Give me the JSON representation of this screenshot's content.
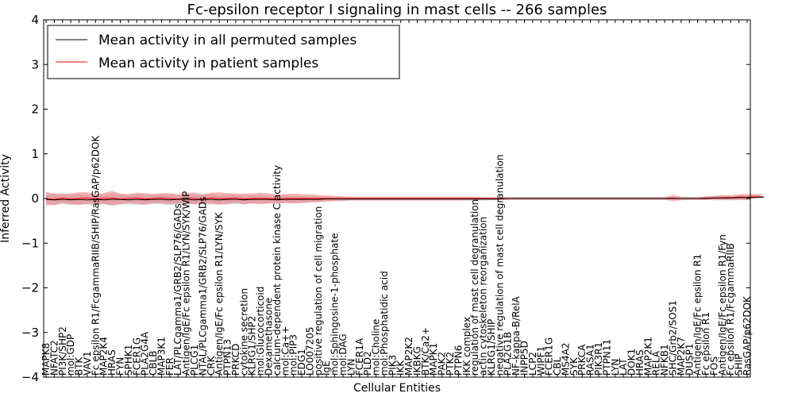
{
  "chart_data": {
    "type": "line",
    "title": "Fc-epsilon receptor I signaling in mast cells -- 266 samples",
    "xlabel": "Cellular Entities",
    "ylabel": "Inferred Activity",
    "ylim": [
      -4,
      4
    ],
    "yticks": [
      "−4",
      "−3",
      "−2",
      "−1",
      "0",
      "1",
      "2",
      "3",
      "4"
    ],
    "legend": {
      "placement": "top-left",
      "entries": [
        {
          "label": "Mean activity in all permuted samples",
          "color": "#000000"
        },
        {
          "label": "Mean activity in patient samples",
          "color": "#ff0000"
        }
      ]
    },
    "colors": {
      "patient": "#ff0000",
      "patient_band": "#f08080",
      "permuted_band": "#b8b8c8"
    },
    "labels": [
      "MAPK8",
      "NFATC2",
      "PI3K/SHP2",
      "mol:GDP",
      "BTK",
      "VAV1",
      "Fc epsilon R1/FcgammaRIIB/SHIP/RasGAP/p62DOK",
      "MAP2K4",
      "HRAS",
      "FYN",
      "SPHK1",
      "FCER1G",
      "PLA2G4A",
      "CBLB",
      "MAP3K1",
      "FER",
      "LAT/PLCgamma1/GRB2/SLP76/GADs",
      "Antigen/IgE/Fc epsilon R1/LYN/SYK/WIP",
      "PLCG1",
      "NTAL/PLCgamma1/GRB2/SLP76/GADs",
      "CRK",
      "Antigen/IgE/Fc epsilon R1/LYN/SYK",
      "PTPN13",
      "PRKCD",
      "cytokine secretion",
      "KLRG1/SHP2",
      "mol:Glucocorticoid",
      "Dexamethasone",
      "calcium-dependent protein kinase C activity",
      "mol:Ca++",
      "mol:PIP3",
      "EDG1",
      "LO007205",
      "positive regulation of cell migration",
      "IgE",
      "mol:Sphingosine-1-phosphate",
      "mol:DAG",
      "LYN",
      "FCER1A",
      "PLD2",
      "mol:Choline",
      "mol:Phosphatidic acid",
      "PIK3",
      "IKK",
      "MAP2K2",
      "IKBKG",
      "BTK/Ca2+",
      "MAPK1",
      "PAK2",
      "PTK2",
      "PTPN6",
      "IKK complex",
      "regulation of mast cell degranulation",
      "actin cytoskeleton reorganization",
      "KLRG1/SHIP",
      "negative regulation of mast cell degranulation",
      "PLA2G1B",
      "NF-kappa-B/RelA",
      "INPP5D",
      "LCP2",
      "WIPF1",
      "FCER1G",
      "CBL",
      "MS4A2",
      "SYK",
      "PRKCA",
      "RASA1",
      "PIK3R1",
      "PTPN11",
      "LYN",
      "LAT",
      "DOK1",
      "HRAS",
      "MAP2K1",
      "RELA",
      "NFKB1",
      "SHC/Grb2/SOS1",
      "MAP2K7",
      "DUSP1",
      "Antigen/IgE/Fc epsilon R1",
      "Fc epsilon R1",
      "FOS",
      "Antigen/IgE/Fc epsilon R1/Fyn",
      "Fc epsilon R1/FcgammaRIIB",
      "SHIP",
      "RasGAP/p62DOK"
    ],
    "permuted_mean": [
      -0.02,
      -0.03,
      -0.02,
      -0.03,
      -0.02,
      -0.03,
      -0.02,
      -0.03,
      -0.02,
      -0.02,
      -0.03,
      -0.02,
      -0.03,
      -0.02,
      -0.02,
      -0.03,
      -0.02,
      -0.02,
      -0.03,
      -0.02,
      -0.02,
      -0.03,
      -0.02,
      -0.02,
      -0.03,
      -0.02,
      -0.02,
      -0.02,
      -0.03,
      -0.02,
      -0.02,
      -0.02,
      -0.02,
      -0.02,
      -0.01,
      -0.01,
      -0.01,
      -0.01,
      -0.01,
      -0.01,
      -0.01,
      -0.01,
      -0.01,
      -0.01,
      -0.01,
      -0.01,
      -0.01,
      -0.01,
      -0.01,
      -0.01,
      -0.01,
      -0.01,
      -0.01,
      -0.01,
      -0.01,
      -0.01,
      0.0,
      0.0,
      0.0,
      0.0,
      0.0,
      0.0,
      0.0,
      0.0,
      0.0,
      0.0,
      0.0,
      0.0,
      0.0,
      0.0,
      0.0,
      0.0,
      0.0,
      0.0,
      0.0,
      0.0,
      0.0,
      0.0,
      0.0,
      0.0,
      0.0,
      0.01,
      0.01,
      0.01,
      0.02,
      0.02,
      0.02,
      0.03
    ],
    "permuted_band": [
      0.1,
      0.12,
      0.1,
      0.11,
      0.12,
      0.1,
      0.13,
      0.1,
      0.14,
      0.11,
      0.1,
      0.12,
      0.11,
      0.1,
      0.11,
      0.12,
      0.1,
      0.11,
      0.1,
      0.12,
      0.11,
      0.1,
      0.11,
      0.1,
      0.1,
      0.09,
      0.09,
      0.08,
      0.08,
      0.08,
      0.07,
      0.07,
      0.06,
      0.06,
      0.05,
      0.05,
      0.05,
      0.04,
      0.04,
      0.04,
      0.04,
      0.04,
      0.04,
      0.04,
      0.04,
      0.04,
      0.04,
      0.04,
      0.04,
      0.04,
      0.04,
      0.04,
      0.04,
      0.04,
      0.03,
      0.03,
      0.03,
      0.03,
      0.03,
      0.03,
      0.03,
      0.03,
      0.03,
      0.03,
      0.03,
      0.03,
      0.03,
      0.03,
      0.03,
      0.03,
      0.03,
      0.03,
      0.03,
      0.03,
      0.03,
      0.03,
      0.03,
      0.03,
      0.03,
      0.03,
      0.03,
      0.04,
      0.04,
      0.05,
      0.05,
      0.05,
      0.05,
      0.05
    ],
    "patient_mean": [
      0.0,
      -0.02,
      0.01,
      -0.01,
      0.0,
      0.01,
      -0.01,
      0.0,
      0.01,
      -0.01,
      0.0,
      0.01,
      -0.01,
      0.0,
      0.01,
      0.0,
      -0.01,
      0.01,
      0.0,
      -0.01,
      0.01,
      0.0,
      0.0,
      0.01,
      -0.01,
      0.0,
      0.0,
      0.0,
      -0.01,
      0.0,
      0.0,
      0.0,
      0.0,
      0.0,
      0.0,
      0.0,
      0.0,
      0.0,
      0.0,
      0.0,
      0.0,
      0.0,
      0.0,
      0.0,
      0.0,
      0.0,
      0.0,
      0.0,
      0.0,
      0.0,
      0.0,
      0.0,
      0.0,
      0.0,
      0.0,
      0.0,
      0.0,
      0.0,
      0.0,
      0.0,
      0.0,
      0.0,
      0.0,
      0.0,
      0.0,
      0.0,
      0.0,
      0.0,
      0.0,
      0.0,
      0.0,
      0.0,
      0.0,
      0.0,
      0.0,
      0.0,
      0.01,
      0.0,
      0.0,
      0.0,
      0.01,
      0.01,
      0.02,
      0.02,
      0.03,
      0.03,
      0.04,
      0.04
    ],
    "patient_band": [
      0.15,
      0.13,
      0.1,
      0.12,
      0.14,
      0.13,
      0.1,
      0.12,
      0.16,
      0.12,
      0.1,
      0.12,
      0.13,
      0.1,
      0.11,
      0.12,
      0.1,
      0.12,
      0.13,
      0.1,
      0.12,
      0.14,
      0.12,
      0.1,
      0.12,
      0.11,
      0.13,
      0.11,
      0.1,
      0.1,
      0.11,
      0.1,
      0.09,
      0.08,
      0.07,
      0.06,
      0.05,
      0.04,
      0.04,
      0.04,
      0.04,
      0.04,
      0.04,
      0.04,
      0.04,
      0.04,
      0.04,
      0.04,
      0.04,
      0.04,
      0.04,
      0.04,
      0.04,
      0.03,
      0.03,
      0.03,
      0.03,
      0.03,
      0.03,
      0.03,
      0.03,
      0.03,
      0.03,
      0.03,
      0.03,
      0.03,
      0.03,
      0.03,
      0.03,
      0.03,
      0.03,
      0.03,
      0.03,
      0.03,
      0.03,
      0.03,
      0.07,
      0.04,
      0.03,
      0.03,
      0.04,
      0.05,
      0.06,
      0.05,
      0.06,
      0.07,
      0.06,
      0.05
    ]
  }
}
